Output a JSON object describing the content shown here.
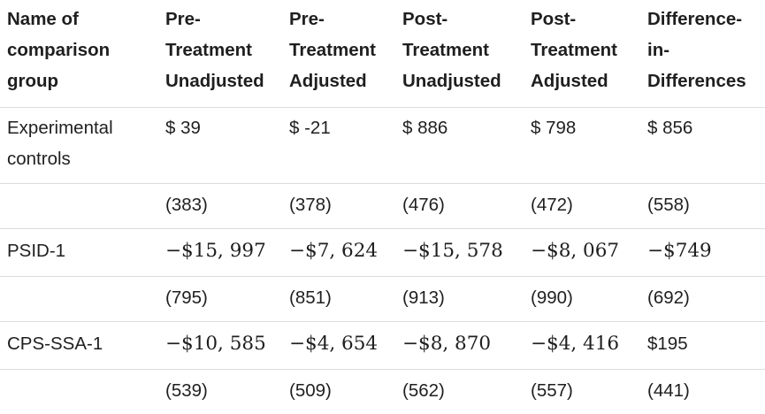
{
  "table": {
    "headers": [
      "Name of comparison group",
      "Pre-Treatment Unadjusted",
      "Pre-Treatment Adjusted",
      "Post-Treatment Unadjusted",
      "Post-Treatment Adjusted",
      "Difference-in-Differences"
    ],
    "rows": [
      [
        "Experimental controls",
        "$ 39",
        "$ -21",
        "$ 886",
        "$ 798",
        "$ 856"
      ],
      [
        "",
        "(383)",
        "(378)",
        "(476)",
        "(472)",
        "(558)"
      ],
      [
        "PSID-1",
        "−$15, 997",
        "−$7, 624",
        "−$15, 578",
        "−$8, 067",
        "−$749"
      ],
      [
        "",
        "(795)",
        "(851)",
        "(913)",
        "(990)",
        "(692)"
      ],
      [
        "CPS-SSA-1",
        "−$10, 585",
        "−$4, 654",
        "−$8, 870",
        "−$4, 416",
        "$195"
      ],
      [
        "",
        "(539)",
        "(509)",
        "(562)",
        "(557)",
        "(441)"
      ]
    ]
  }
}
